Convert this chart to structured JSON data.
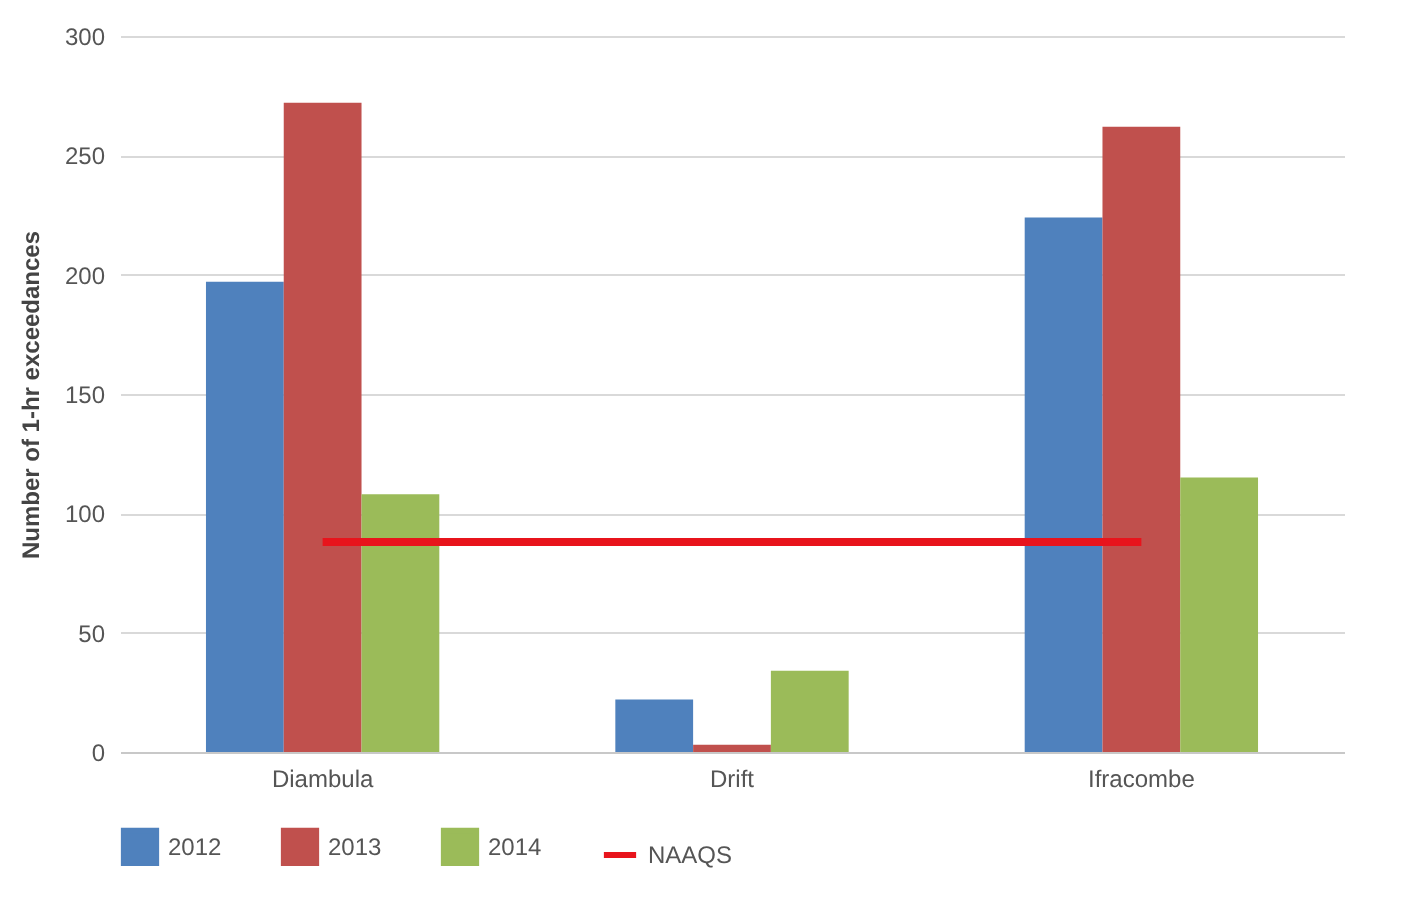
{
  "chart_data": {
    "type": "bar",
    "ylabel": "Number of 1-hr exceedances",
    "categories": [
      "Diambula",
      "Drift",
      "Ifracombe"
    ],
    "ylim": [
      0,
      300
    ],
    "yticks": [
      0,
      50,
      100,
      150,
      200,
      250,
      300
    ],
    "grid": "y",
    "legend": "bottom",
    "series": [
      {
        "name": "2012",
        "color": "#4f81bd",
        "values": [
          197,
          22,
          224
        ]
      },
      {
        "name": "2013",
        "color": "#c0504d",
        "values": [
          272,
          3,
          262
        ]
      },
      {
        "name": "2014",
        "color": "#9bbb59",
        "values": [
          108,
          34,
          115
        ]
      },
      {
        "name": "NAAQS",
        "type": "line",
        "color": "#e8141c",
        "values": [
          88,
          88,
          88
        ]
      }
    ]
  }
}
